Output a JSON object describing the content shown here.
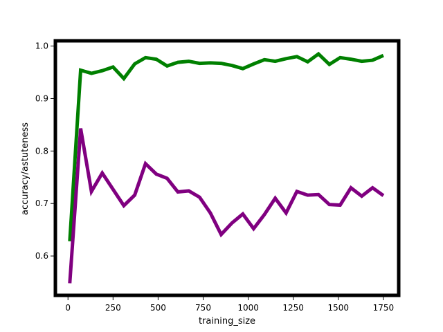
{
  "chart_data": {
    "type": "line",
    "title": "",
    "xlabel": "training_size",
    "ylabel": "accuracy/astuteness",
    "xlim": [
      -70,
      1835
    ],
    "ylim": [
      0.525,
      1.01
    ],
    "xticks": [
      0,
      250,
      500,
      750,
      1000,
      1250,
      1500,
      1750
    ],
    "xtick_labels": [
      "0",
      "250",
      "500",
      "750",
      "1000",
      "1250",
      "1500",
      "1750"
    ],
    "yticks": [
      0.6,
      0.7,
      0.8,
      0.9,
      1.0
    ],
    "ytick_labels": [
      "0.6",
      "0.7",
      "0.8",
      "0.9",
      "1.0"
    ],
    "grid": false,
    "legend": "none",
    "x": [
      10,
      70,
      130,
      190,
      250,
      310,
      370,
      430,
      490,
      550,
      610,
      670,
      730,
      790,
      850,
      910,
      970,
      1030,
      1090,
      1150,
      1210,
      1270,
      1330,
      1390,
      1450,
      1510,
      1570,
      1630,
      1690,
      1750
    ],
    "series": [
      {
        "color": "#008000",
        "values": [
          0.628,
          0.954,
          0.948,
          0.953,
          0.96,
          0.938,
          0.966,
          0.978,
          0.975,
          0.962,
          0.969,
          0.971,
          0.967,
          0.968,
          0.967,
          0.963,
          0.957,
          0.966,
          0.974,
          0.971,
          0.976,
          0.98,
          0.97,
          0.985,
          0.965,
          0.978,
          0.975,
          0.971,
          0.973,
          0.982
        ]
      },
      {
        "color": "#800080",
        "values": [
          0.548,
          0.843,
          0.723,
          0.758,
          0.727,
          0.696,
          0.716,
          0.776,
          0.756,
          0.748,
          0.722,
          0.724,
          0.712,
          0.682,
          0.641,
          0.663,
          0.68,
          0.652,
          0.679,
          0.71,
          0.682,
          0.723,
          0.716,
          0.717,
          0.698,
          0.697,
          0.73,
          0.714,
          0.73,
          0.715
        ]
      }
    ]
  }
}
